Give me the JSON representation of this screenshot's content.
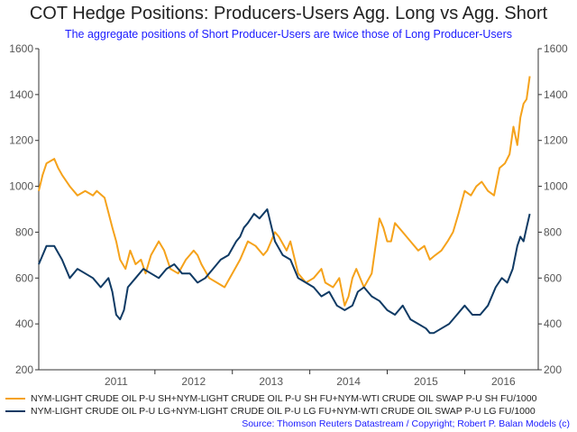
{
  "chart_data": {
    "type": "line",
    "title": "COT Hedge Positions: Producers-Users Agg. Long vs Agg. Short",
    "subtitle": "The aggregate positions of Short Producer-Users are twice those of Long Producer-Users",
    "source": "Source: Thomson Reuters Datastream / Copyright; Robert P. Balan Models (c)",
    "x_tick_labels": [
      "2011",
      "2012",
      "2013",
      "2014",
      "2015",
      "2016"
    ],
    "xlim": [
      2010.5,
      2016.95
    ],
    "ylim": [
      200,
      1600
    ],
    "y_ticks": [
      "200",
      "400",
      "600",
      "800",
      "1000",
      "1200",
      "1400",
      "1600"
    ],
    "y_axes": "both sides",
    "grid": false,
    "legend_position": "bottom",
    "series": [
      {
        "name": "NYM-LIGHT CRUDE OIL P-U SH+NYM-LIGHT CRUDE OIL P-U SH FU+NYM-WTI CRUDE OIL SWAP P-U SH FU/1000",
        "color": "#f5a21b",
        "x": [
          2010.5,
          2010.55,
          2010.6,
          2010.7,
          2010.75,
          2010.8,
          2010.9,
          2011.0,
          2011.1,
          2011.2,
          2011.25,
          2011.35,
          2011.45,
          2011.5,
          2011.55,
          2011.62,
          2011.68,
          2011.75,
          2011.82,
          2011.88,
          2011.95,
          2012.05,
          2012.12,
          2012.2,
          2012.3,
          2012.4,
          2012.45,
          2012.5,
          2012.55,
          2012.6,
          2012.7,
          2012.8,
          2012.9,
          2013.0,
          2013.1,
          2013.15,
          2013.2,
          2013.3,
          2013.4,
          2013.45,
          2013.55,
          2013.6,
          2013.7,
          2013.75,
          2013.85,
          2013.95,
          2014.05,
          2014.15,
          2014.2,
          2014.3,
          2014.38,
          2014.45,
          2014.5,
          2014.55,
          2014.6,
          2014.7,
          2014.8,
          2014.9,
          2014.95,
          2015.0,
          2015.05,
          2015.1,
          2015.2,
          2015.3,
          2015.4,
          2015.48,
          2015.55,
          2015.62,
          2015.7,
          2015.78,
          2015.85,
          2015.92,
          2016.0,
          2016.08,
          2016.15,
          2016.22,
          2016.3,
          2016.38,
          2016.45,
          2016.52,
          2016.58,
          2016.63,
          2016.68,
          2016.72,
          2016.76,
          2016.8,
          2016.84
        ],
        "values": [
          980,
          1050,
          1100,
          1120,
          1080,
          1050,
          1000,
          960,
          980,
          960,
          980,
          950,
          820,
          760,
          680,
          640,
          720,
          660,
          680,
          620,
          700,
          760,
          720,
          640,
          620,
          680,
          700,
          720,
          700,
          660,
          600,
          580,
          560,
          620,
          680,
          720,
          760,
          740,
          700,
          720,
          800,
          780,
          720,
          760,
          620,
          580,
          600,
          640,
          580,
          560,
          600,
          480,
          520,
          600,
          640,
          560,
          620,
          860,
          820,
          760,
          760,
          840,
          800,
          760,
          720,
          740,
          680,
          700,
          720,
          760,
          800,
          880,
          980,
          960,
          1000,
          1020,
          980,
          960,
          1080,
          1100,
          1140,
          1260,
          1180,
          1300,
          1360,
          1380,
          1480
        ]
      },
      {
        "name": "NYM-LIGHT CRUDE OIL P-U LG+NYM-LIGHT CRUDE OIL P-U LG FU+NYM-WTI CRUDE OIL SWAP P-U LG FU/1000",
        "color": "#0f3a64",
        "x": [
          2010.5,
          2010.55,
          2010.6,
          2010.7,
          2010.8,
          2010.9,
          2011.0,
          2011.1,
          2011.2,
          2011.3,
          2011.4,
          2011.45,
          2011.5,
          2011.55,
          2011.6,
          2011.65,
          2011.75,
          2011.85,
          2011.95,
          2012.05,
          2012.15,
          2012.25,
          2012.35,
          2012.45,
          2012.55,
          2012.65,
          2012.75,
          2012.85,
          2012.95,
          2013.05,
          2013.1,
          2013.15,
          2013.2,
          2013.28,
          2013.35,
          2013.45,
          2013.55,
          2013.65,
          2013.75,
          2013.85,
          2013.95,
          2014.05,
          2014.15,
          2014.25,
          2014.35,
          2014.45,
          2014.55,
          2014.62,
          2014.7,
          2014.8,
          2014.9,
          2015.0,
          2015.1,
          2015.2,
          2015.3,
          2015.4,
          2015.5,
          2015.55,
          2015.6,
          2015.7,
          2015.8,
          2015.9,
          2016.0,
          2016.1,
          2016.2,
          2016.3,
          2016.4,
          2016.48,
          2016.55,
          2016.62,
          2016.68,
          2016.72,
          2016.76,
          2016.8,
          2016.84
        ],
        "values": [
          660,
          700,
          740,
          740,
          680,
          600,
          640,
          620,
          600,
          560,
          600,
          540,
          440,
          420,
          460,
          560,
          600,
          640,
          620,
          600,
          640,
          660,
          620,
          620,
          580,
          600,
          640,
          680,
          700,
          760,
          780,
          820,
          840,
          880,
          860,
          900,
          760,
          700,
          680,
          600,
          580,
          560,
          520,
          540,
          480,
          460,
          480,
          540,
          560,
          520,
          500,
          460,
          440,
          480,
          420,
          400,
          380,
          360,
          360,
          380,
          400,
          440,
          480,
          440,
          440,
          480,
          560,
          600,
          580,
          640,
          740,
          780,
          760,
          820,
          880
        ]
      }
    ]
  }
}
